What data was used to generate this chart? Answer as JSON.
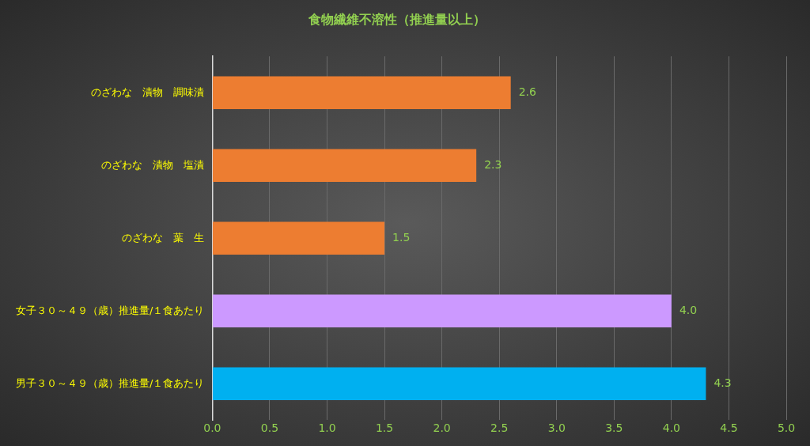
{
  "chart_data": {
    "type": "bar",
    "orientation": "horizontal",
    "title": "食物繊維不溶性（推進量以上）",
    "categories": [
      "のざわな　漬物　調味漬",
      "のざわな　漬物　塩漬",
      "のざわな　葉　生",
      "女子３０～４９（歳）推進量/１食あたり",
      "男子３０～４９（歳）推進量/１食あたり"
    ],
    "values": [
      2.6,
      2.3,
      1.5,
      4.0,
      4.3
    ],
    "colors": [
      "#ed7d31",
      "#ed7d31",
      "#ed7d31",
      "#cc99ff",
      "#00b0f0"
    ],
    "value_labels": [
      "2.6",
      "2.3",
      "1.5",
      "4.0",
      "4.3"
    ],
    "xlim": [
      0,
      5
    ],
    "xticks": [
      {
        "value": 0,
        "label": "0.0"
      },
      {
        "value": 0.5,
        "label": "0.5"
      },
      {
        "value": 1,
        "label": "1.0"
      },
      {
        "value": 1.5,
        "label": "1.5"
      },
      {
        "value": 2,
        "label": "2.0"
      },
      {
        "value": 2.5,
        "label": "2.5"
      },
      {
        "value": 3,
        "label": "3.0"
      },
      {
        "value": 3.5,
        "label": "3.5"
      },
      {
        "value": 4,
        "label": "4.0"
      },
      {
        "value": 4.5,
        "label": "4.5"
      },
      {
        "value": 5,
        "label": "5.0"
      }
    ],
    "grid": "x",
    "legend": false
  }
}
